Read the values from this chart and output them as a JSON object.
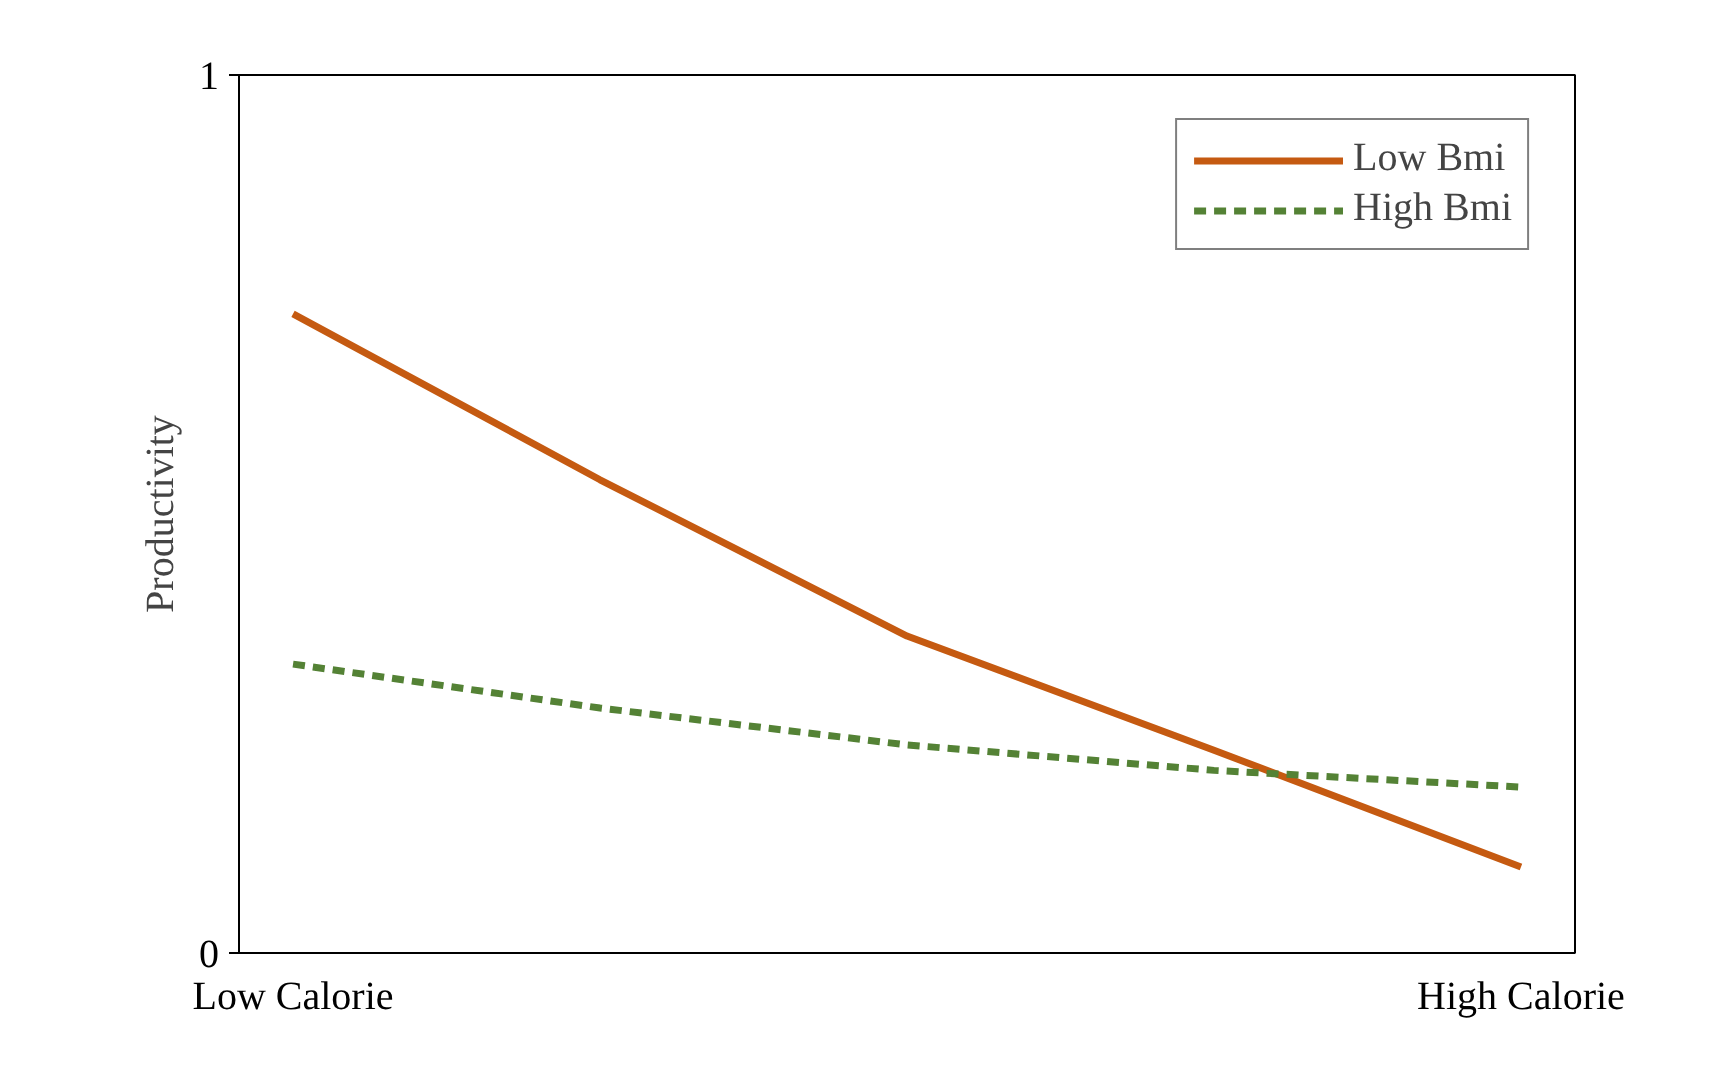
{
  "chart_data": {
    "type": "line",
    "ylabel": "Productivity",
    "categories": [
      "Low Calorie",
      null,
      null,
      null,
      "High Calorie"
    ],
    "series": [
      {
        "name": "Low Bmi",
        "color": "#c55a11",
        "values": [
          0.728,
          0.539,
          0.361,
          0.231,
          0.098
        ],
        "line_style": "solid"
      },
      {
        "name": "High Bmi",
        "color": "#548235",
        "values": [
          0.329,
          0.279,
          0.237,
          0.208,
          0.189
        ],
        "line_style": "dashed"
      }
    ],
    "ylim": [
      0,
      1
    ],
    "yticks": [
      0,
      1
    ],
    "grid": false,
    "legend": "top right",
    "marker": "none"
  }
}
